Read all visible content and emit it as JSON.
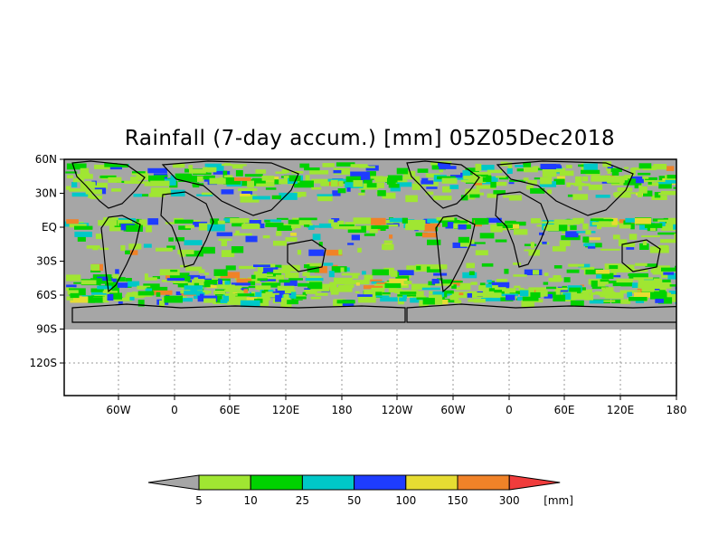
{
  "title": "Rainfall (7-day accum.) [mm] 05Z05Dec2018",
  "y_ticks": [
    "60N",
    "30N",
    "EQ",
    "30S",
    "60S",
    "90S",
    "120S"
  ],
  "x_ticks": [
    "60W",
    "0",
    "60E",
    "120E",
    "180",
    "120W",
    "60W",
    "0",
    "60E",
    "120E",
    "180"
  ],
  "colorbar": {
    "unit": "[mm]",
    "levels": [
      "5",
      "10",
      "25",
      "50",
      "100",
      "150",
      "300"
    ],
    "colors": [
      "#a6a6a6",
      "#a0e632",
      "#00d200",
      "#00c8c8",
      "#1e3cff",
      "#e6dc32",
      "#f08228",
      "#f03c3c"
    ]
  },
  "colors": {
    "land_no_rain": "#a6a6a6",
    "ocean": "#a6a6a6",
    "coastline": "#000000"
  }
}
